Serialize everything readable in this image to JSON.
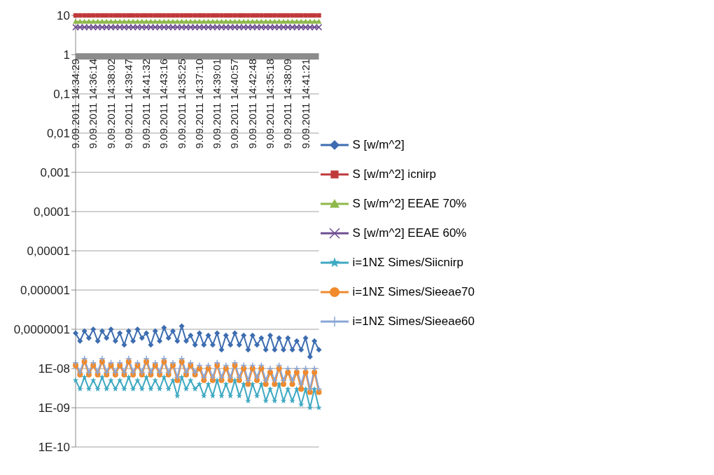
{
  "chart_data": {
    "type": "line",
    "log": "y",
    "grid": "y",
    "legend": "right",
    "categories": [
      "9.09.2011 14:34:29",
      null,
      null,
      null,
      "9.09.2011 14:36:14",
      null,
      null,
      null,
      "9.09.2011 14:38:02",
      null,
      null,
      null,
      "9.09.2011 14:39:47",
      null,
      null,
      null,
      "9.09.2011 14:41:32",
      null,
      null,
      null,
      "9.09.2011 14:43:16",
      null,
      null,
      null,
      "9.09.2011 14:35:25",
      null,
      null,
      null,
      "9.09.2011 14:37:10",
      null,
      null,
      null,
      "9.09.2011 14:39:01",
      null,
      null,
      null,
      "9.09.2011 14:40:57",
      null,
      null,
      null,
      "9.09.2011 14:42:48",
      null,
      null,
      null,
      "9.09.2011 14:35:18",
      null,
      null,
      null,
      "9.09.2011 14:38:09",
      null,
      null,
      null,
      "9.09.2011 14:41:21",
      null,
      null,
      null
    ],
    "ylim": [
      1e-10,
      10
    ],
    "yticks": [
      {
        "value": 1e-10,
        "label": "1E-10"
      },
      {
        "value": 1e-09,
        "label": "1E-09"
      },
      {
        "value": 1e-08,
        "label": "1E-08"
      },
      {
        "value": 1e-07,
        "label": "0,0000001"
      },
      {
        "value": 1e-06,
        "label": "0,000001"
      },
      {
        "value": 1e-05,
        "label": "0,00001"
      },
      {
        "value": 0.0001,
        "label": "0,0001"
      },
      {
        "value": 0.001,
        "label": "0,001"
      },
      {
        "value": 0.01,
        "label": "0,01"
      },
      {
        "value": 0.1,
        "label": "0,1"
      },
      1,
      10
    ],
    "series": [
      {
        "name": "S [w/m^2]",
        "color": "#3d6db0",
        "marker": "diamond",
        "values": [
          8e-08,
          5e-08,
          9e-08,
          6e-08,
          1e-07,
          5e-08,
          9e-08,
          6e-08,
          1e-07,
          5e-08,
          8e-08,
          4e-08,
          9e-08,
          5e-08,
          1e-07,
          6e-08,
          8e-08,
          4e-08,
          9e-08,
          5e-08,
          1.1e-07,
          6e-08,
          9e-08,
          5e-08,
          1.2e-07,
          5e-08,
          7e-08,
          4e-08,
          8e-08,
          4e-08,
          7e-08,
          4e-08,
          8e-08,
          3e-08,
          7e-08,
          4e-08,
          8e-08,
          4e-08,
          7e-08,
          3e-08,
          7e-08,
          4e-08,
          6e-08,
          3e-08,
          7e-08,
          3e-08,
          6e-08,
          3e-08,
          6e-08,
          3e-08,
          5e-08,
          3e-08,
          6e-08,
          2e-08,
          5e-08,
          3e-08
        ]
      },
      {
        "name": "S [w/m^2] icnirp",
        "color": "#c0393b",
        "marker": "square",
        "values": [
          10,
          10,
          10,
          10,
          10,
          10,
          10,
          10,
          10,
          10,
          10,
          10,
          10,
          10,
          10,
          10,
          10,
          10,
          10,
          10,
          10,
          10,
          10,
          10,
          10,
          10,
          10,
          10,
          10,
          10,
          10,
          10,
          10,
          10,
          10,
          10,
          10,
          10,
          10,
          10,
          10,
          10,
          10,
          10,
          10,
          10,
          10,
          10,
          10,
          10,
          10,
          10,
          10,
          10,
          10,
          10
        ]
      },
      {
        "name": "S [w/m^2] EEAE 70%",
        "color": "#8db84a",
        "marker": "triangle",
        "values": [
          7,
          7,
          7,
          7,
          7,
          7,
          7,
          7,
          7,
          7,
          7,
          7,
          7,
          7,
          7,
          7,
          7,
          7,
          7,
          7,
          7,
          7,
          7,
          7,
          7,
          7,
          7,
          7,
          7,
          7,
          7,
          7,
          7,
          7,
          7,
          7,
          7,
          7,
          7,
          7,
          7,
          7,
          7,
          7,
          7,
          7,
          7,
          7,
          7,
          7,
          7,
          7,
          7,
          7,
          7,
          7
        ]
      },
      {
        "name": "S [w/m^2] EEAE 60%",
        "color": "#6f4f92",
        "marker": "cross",
        "values": [
          5,
          5,
          5,
          5,
          5,
          5,
          5,
          5,
          5,
          5,
          5,
          5,
          5,
          5,
          5,
          5,
          5,
          5,
          5,
          5,
          5,
          5,
          5,
          5,
          5,
          5,
          5,
          5,
          5,
          5,
          5,
          5,
          5,
          5,
          5,
          5,
          5,
          5,
          5,
          5,
          5,
          5,
          5,
          5,
          5,
          5,
          5,
          5,
          5,
          5,
          5,
          5,
          5,
          5,
          5,
          5
        ]
      },
      {
        "name": "i=1NΣ Simes/Siicnirp",
        "color": "#3fa9c2",
        "marker": "star",
        "values": [
          5e-09,
          3e-09,
          6e-09,
          3e-09,
          5e-09,
          3e-09,
          6e-09,
          3e-09,
          5e-09,
          3e-09,
          5e-09,
          3e-09,
          6e-09,
          3e-09,
          5e-09,
          3e-09,
          6e-09,
          3e-09,
          5e-09,
          3e-09,
          6e-09,
          3e-09,
          5e-09,
          2e-09,
          6e-09,
          3e-09,
          5e-09,
          3e-09,
          4e-09,
          2e-09,
          4e-09,
          2e-09,
          5e-09,
          2e-09,
          4e-09,
          2e-09,
          5e-09,
          2e-09,
          4e-09,
          1.5e-09,
          4e-09,
          2e-09,
          4e-09,
          1.5e-09,
          3e-09,
          1.5e-09,
          4e-09,
          1.5e-09,
          3e-09,
          1.5e-09,
          3e-09,
          1.2e-09,
          3e-09,
          1e-09,
          3e-09,
          1e-09
        ]
      },
      {
        "name": "i=1NΣ Simes/Sieeae70",
        "color": "#f08a2c",
        "marker": "circle",
        "values": [
          1.2e-08,
          7e-09,
          1.5e-08,
          7e-09,
          1.2e-08,
          7e-09,
          1.5e-08,
          7e-09,
          1.2e-08,
          7e-09,
          1.2e-08,
          7e-09,
          1.5e-08,
          7e-09,
          1.2e-08,
          7e-09,
          1.5e-08,
          7e-09,
          1.2e-08,
          7e-09,
          1.5e-08,
          7e-09,
          1.2e-08,
          5e-09,
          1.5e-08,
          7e-09,
          1.2e-08,
          7e-09,
          1e-08,
          5e-09,
          1e-08,
          5e-09,
          1.2e-08,
          5e-09,
          1e-08,
          5e-09,
          1.2e-08,
          5e-09,
          1e-08,
          4e-09,
          1e-08,
          5e-09,
          1e-08,
          4e-09,
          8e-09,
          4e-09,
          1e-08,
          4e-09,
          8e-09,
          4e-09,
          8e-09,
          3e-09,
          8e-09,
          2.5e-09,
          8e-09,
          2.5e-09
        ]
      },
      {
        "name": "i=1NΣ Simes/Sieeae60",
        "color": "#8aa6d6",
        "marker": "plus",
        "values": [
          1.4e-08,
          8e-09,
          1.8e-08,
          8e-09,
          1.4e-08,
          8e-09,
          1.8e-08,
          8e-09,
          1.4e-08,
          8e-09,
          1.4e-08,
          8e-09,
          1.8e-08,
          8e-09,
          1.4e-08,
          8e-09,
          1.8e-08,
          8e-09,
          1.4e-08,
          8e-09,
          1.8e-08,
          8e-09,
          1.4e-08,
          6e-09,
          1.8e-08,
          8e-09,
          1.4e-08,
          8e-09,
          1.2e-08,
          6e-09,
          1.2e-08,
          6e-09,
          1.4e-08,
          6e-09,
          1.2e-08,
          6e-09,
          1.4e-08,
          6e-09,
          1.2e-08,
          5e-09,
          1.2e-08,
          6e-09,
          1.2e-08,
          5e-09,
          1e-08,
          5e-09,
          1.2e-08,
          5e-09,
          1e-08,
          5e-09,
          1e-08,
          4e-09,
          1e-08,
          3e-09,
          1e-08,
          3e-09
        ]
      },
      {
        "color": "#8c8c8c",
        "marker": "none",
        "values": [
          0.9,
          0.9,
          0.9,
          0.9,
          0.9,
          0.9,
          0.9,
          0.9,
          0.9,
          0.9,
          0.9,
          0.9,
          0.9,
          0.9,
          0.9,
          0.9,
          0.9,
          0.9,
          0.9,
          0.9,
          0.9,
          0.9,
          0.9,
          0.9,
          0.9,
          0.9,
          0.9,
          0.9,
          0.9,
          0.9,
          0.9,
          0.9,
          0.9,
          0.9,
          0.9,
          0.9,
          0.9,
          0.9,
          0.9,
          0.9,
          0.9,
          0.9,
          0.9,
          0.9,
          0.9,
          0.9,
          0.9,
          0.9,
          0.9,
          0.9,
          0.9,
          0.9,
          0.9,
          0.9,
          0.9,
          0.9
        ]
      }
    ]
  }
}
